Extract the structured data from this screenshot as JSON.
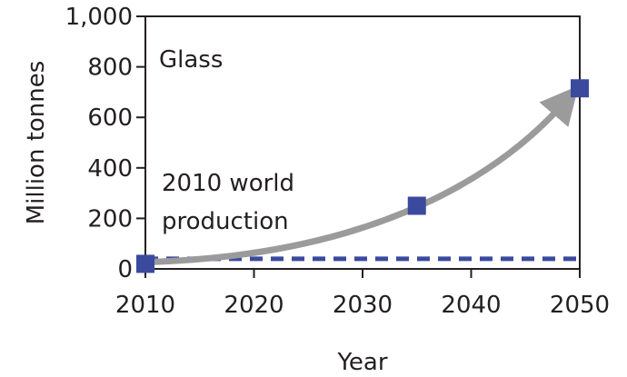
{
  "chart_data": {
    "type": "scatter",
    "title": "",
    "xlabel": "Year",
    "ylabel": "Million tonnes",
    "xlim": [
      2010,
      2050
    ],
    "ylim": [
      0,
      1000
    ],
    "x_ticks": [
      2010,
      2020,
      2030,
      2040,
      2050
    ],
    "x_tick_labels": [
      "2010",
      "2020",
      "2030",
      "2040",
      "2050"
    ],
    "y_ticks": [
      0,
      200,
      400,
      600,
      800,
      1000
    ],
    "y_tick_labels": [
      "0",
      "200",
      "400",
      "600",
      "800",
      "1,000"
    ],
    "series": [
      {
        "name": "Glass",
        "marker": "square",
        "color": "#3b4a9e",
        "points": [
          {
            "x": 2010,
            "y": 20
          },
          {
            "x": 2035,
            "y": 250
          },
          {
            "x": 2050,
            "y": 715
          }
        ]
      }
    ],
    "reference_line": {
      "label_line1": "2010 world",
      "label_line2": "production",
      "y": 40,
      "style": "dashed",
      "color": "#3b4a9e"
    },
    "trend_arrow": {
      "color": "#9b9b9b",
      "x_start": 2010,
      "y_start": 20,
      "x_end": 2050,
      "y_end": 715
    },
    "annotation": "Glass",
    "grid": false
  }
}
